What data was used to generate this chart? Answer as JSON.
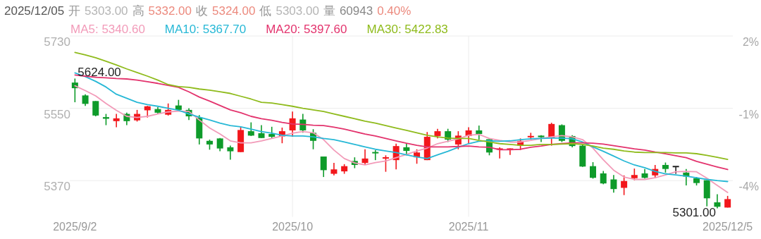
{
  "chart_data": {
    "type": "candlestick",
    "categories": [
      "2025/9/2",
      null,
      null,
      null,
      null,
      null,
      null,
      null,
      null,
      null,
      null,
      null,
      null,
      null,
      null,
      null,
      null,
      null,
      null,
      null,
      null,
      "2025/10",
      null,
      null,
      null,
      null,
      null,
      null,
      null,
      null,
      null,
      null,
      null,
      null,
      null,
      null,
      null,
      null,
      "2025/11",
      null,
      null,
      null,
      null,
      null,
      null,
      null,
      null,
      null,
      null,
      null,
      null,
      null,
      null,
      null,
      null,
      null,
      null,
      null,
      null,
      null,
      null,
      null,
      null,
      "2025/12/5"
    ],
    "ohlc": [
      [
        5614,
        5624,
        5565,
        5600
      ],
      [
        5582,
        5585,
        5556,
        5561
      ],
      [
        5568,
        5568,
        5530,
        5532
      ],
      [
        5528,
        5536,
        5508,
        5524
      ],
      [
        5518,
        5536,
        5503,
        5525
      ],
      [
        5536,
        5539,
        5508,
        5518
      ],
      [
        5520,
        5546,
        5517,
        5536
      ],
      [
        5545,
        5556,
        5527,
        5555
      ],
      [
        5548,
        5553,
        5536,
        5539
      ],
      [
        5534,
        5562,
        5532,
        5546
      ],
      [
        5557,
        5571,
        5545,
        5546
      ],
      [
        5546,
        5550,
        5521,
        5530
      ],
      [
        5527,
        5533,
        5460,
        5475
      ],
      [
        5469,
        5472,
        5447,
        5460
      ],
      [
        5475,
        5476,
        5443,
        5450
      ],
      [
        5453,
        5457,
        5422,
        5443
      ],
      [
        5441,
        5504,
        5441,
        5496
      ],
      [
        5493,
        5515,
        5481,
        5482
      ],
      [
        5488,
        5508,
        5476,
        5476
      ],
      [
        5486,
        5504,
        5475,
        5479
      ],
      [
        5480,
        5502,
        5463,
        5493
      ],
      [
        5495,
        5542,
        5479,
        5525
      ],
      [
        5522,
        5536,
        5489,
        5495
      ],
      [
        5489,
        5498,
        5448,
        5469
      ],
      [
        5430,
        5430,
        5379,
        5396
      ],
      [
        5387,
        5414,
        5383,
        5398
      ],
      [
        5393,
        5411,
        5387,
        5406
      ],
      [
        5419,
        5428,
        5401,
        5409
      ],
      [
        5414,
        5448,
        5409,
        5425
      ],
      [
        5441,
        5446,
        5421,
        5438
      ],
      [
        5425,
        5433,
        5392,
        5428
      ],
      [
        5421,
        5462,
        5398,
        5456
      ],
      [
        5453,
        5462,
        5433,
        5444
      ],
      [
        5428,
        5448,
        5412,
        5440
      ],
      [
        5421,
        5491,
        5421,
        5479
      ],
      [
        5481,
        5499,
        5475,
        5493
      ],
      [
        5493,
        5499,
        5466,
        5472
      ],
      [
        5460,
        5493,
        5448,
        5482
      ],
      [
        5481,
        5503,
        5462,
        5495
      ],
      [
        5495,
        5507,
        5472,
        5486
      ],
      [
        5473,
        5473,
        5433,
        5440
      ],
      [
        5447,
        5453,
        5425,
        5450
      ],
      [
        5447,
        5450,
        5434,
        5450
      ],
      [
        5457,
        5475,
        5446,
        5469
      ],
      [
        5478,
        5489,
        5472,
        5481
      ],
      [
        5482,
        5483,
        5466,
        5478
      ],
      [
        5476,
        5514,
        5457,
        5511
      ],
      [
        5508,
        5510,
        5466,
        5469
      ],
      [
        5481,
        5483,
        5453,
        5456
      ],
      [
        5457,
        5460,
        5404,
        5405
      ],
      [
        5406,
        5416,
        5375,
        5377
      ],
      [
        5388,
        5394,
        5361,
        5363
      ],
      [
        5373,
        5384,
        5340,
        5349
      ],
      [
        5352,
        5383,
        5334,
        5369
      ],
      [
        5376,
        5400,
        5371,
        5384
      ],
      [
        5388,
        5399,
        5375,
        5377
      ],
      [
        5383,
        5409,
        5376,
        5399
      ],
      [
        5409,
        5415,
        5390,
        5399
      ],
      [
        5405,
        5405,
        5387,
        5405
      ],
      [
        5390,
        5399,
        5358,
        5380
      ],
      [
        5376,
        5379,
        5358,
        5364
      ],
      [
        5371,
        5371,
        5306,
        5326
      ],
      [
        5316,
        5336,
        5301,
        5305
      ],
      [
        5303,
        5332,
        5303,
        5324
      ]
    ],
    "colors": [
      "#0e9b2a",
      "#0e9b2a",
      "#0e9b2a",
      "#0e9b2a",
      "#f2171c",
      "#0e9b2a",
      "#f2171c",
      "#f2171c",
      "#0e9b2a",
      "#f2171c",
      "#0e9b2a",
      "#0e9b2a",
      "#0e9b2a",
      "#0e9b2a",
      "#0e9b2a",
      "#0e9b2a",
      "#f2171c",
      "#0e9b2a",
      "#0e9b2a",
      "#0e9b2a",
      "#f2171c",
      "#f2171c",
      "#0e9b2a",
      "#0e9b2a",
      "#0e9b2a",
      "#f2171c",
      "#f2171c",
      "#0e9b2a",
      "#f2171c",
      "#0e9b2a",
      "#f2171c",
      "#f2171c",
      "#0e9b2a",
      "#f2171c",
      "#f2171c",
      "#f2171c",
      "#0e9b2a",
      "#f2171c",
      "#f2171c",
      "#0e9b2a",
      "#0e9b2a",
      "#f2171c",
      "#f2171c",
      "#f2171c",
      "#f2171c",
      "#0e9b2a",
      "#f2171c",
      "#0e9b2a",
      "#0e9b2a",
      "#0e9b2a",
      "#0e9b2a",
      "#0e9b2a",
      "#0e9b2a",
      "#f2171c",
      "#f2171c",
      "#0e9b2a",
      "#f2171c",
      "#0e9b2a",
      "#222222",
      "#0e9b2a",
      "#0e9b2a",
      "#0e9b2a",
      "#0e9b2a",
      "#f2171c"
    ],
    "series": [
      {
        "name": "MA5: 5340.60",
        "type": "line",
        "color": "#f29bb9",
        "values": [
          5606,
          5594,
          5581,
          5562,
          5545,
          5530,
          5527,
          5530,
          5536,
          5541,
          5543,
          5542,
          5521,
          5501,
          5486,
          5469,
          5464,
          5464,
          5469,
          5475,
          5481,
          5488,
          5492,
          5489,
          5472,
          5446,
          5425,
          5414,
          5409,
          5415,
          5419,
          5427,
          5435,
          5444,
          5451,
          5462,
          5468,
          5474,
          5483,
          5485,
          5475,
          5470,
          5466,
          5466,
          5470,
          5475,
          5479,
          5482,
          5479,
          5472,
          5451,
          5422,
          5396,
          5379,
          5373,
          5373,
          5377,
          5384,
          5392,
          5393,
          5392,
          5376,
          5358,
          5340.6
        ]
      },
      {
        "name": "MA10: 5367.70",
        "type": "line",
        "color": "#27b8d6",
        "values": [
          5638,
          5629,
          5617,
          5603,
          5585,
          5575,
          5565,
          5559,
          5555,
          5550,
          5545,
          5536,
          5528,
          5521,
          5513,
          5507,
          5504,
          5498,
          5492,
          5488,
          5483,
          5481,
          5481,
          5479,
          5475,
          5472,
          5466,
          5460,
          5454,
          5448,
          5444,
          5440,
          5434,
          5429,
          5425,
          5434,
          5443,
          5453,
          5462,
          5468,
          5469,
          5468,
          5469,
          5472,
          5474,
          5475,
          5476,
          5476,
          5474,
          5466,
          5454,
          5443,
          5431,
          5419,
          5409,
          5402,
          5393,
          5387,
          5384,
          5381,
          5377,
          5373,
          5370,
          5367.7
        ]
      },
      {
        "name": "MA20: 5397.60",
        "type": "line",
        "color": "#e3336d",
        "values": [
          5633,
          5630,
          5627,
          5626,
          5624,
          5623,
          5620,
          5616,
          5612,
          5607,
          5602,
          5591,
          5578,
          5568,
          5557,
          5546,
          5539,
          5530,
          5524,
          5520,
          5515,
          5511,
          5510,
          5508,
          5507,
          5503,
          5498,
          5492,
          5486,
          5481,
          5475,
          5469,
          5463,
          5458,
          5454,
          5454,
          5454,
          5455,
          5456,
          5454,
          5453,
          5447,
          5447,
          5448,
          5453,
          5456,
          5460,
          5462,
          5464,
          5464,
          5463,
          5461,
          5457,
          5453,
          5449,
          5446,
          5441,
          5437,
          5432,
          5427,
          5418,
          5411,
          5404,
          5397.6
        ]
      },
      {
        "name": "MA30: 5422.83",
        "type": "line",
        "color": "#8fbb1c",
        "values": [
          5689,
          5683,
          5676,
          5667,
          5658,
          5648,
          5639,
          5630,
          5620,
          5609,
          5604,
          5602,
          5598,
          5595,
          5591,
          5587,
          5580,
          5573,
          5565,
          5563,
          5559,
          5555,
          5550,
          5546,
          5542,
          5536,
          5530,
          5524,
          5518,
          5513,
          5507,
          5501,
          5495,
          5489,
          5483,
          5479,
          5476,
          5475,
          5475,
          5470,
          5466,
          5462,
          5460,
          5458,
          5458,
          5460,
          5460,
          5461,
          5462,
          5460,
          5456,
          5451,
          5448,
          5444,
          5441,
          5440,
          5440,
          5440,
          5439,
          5439,
          5437,
          5433,
          5428,
          5422.83
        ]
      }
    ],
    "ylim": [
      5280,
      5730
    ],
    "yticks": [
      5730,
      5550,
      5370
    ],
    "y2lim": [
      -5.5,
      2
    ],
    "y2ticks": [
      {
        "value": 2,
        "label": "2%"
      },
      {
        "value": -1,
        "label": "-1%"
      },
      {
        "value": -4,
        "label": "-4%"
      }
    ],
    "grid": true,
    "legend": "top",
    "annotations": [
      "2025/12/05",
      "开",
      "5303.00",
      "高",
      "5332.00",
      "收",
      "5324.00",
      "低",
      "5303.00",
      "量",
      "60943",
      "0.40%",
      {
        "text": "5624.00",
        "x": "2025/9/2",
        "y": 5624
      },
      "5301.00"
    ]
  }
}
